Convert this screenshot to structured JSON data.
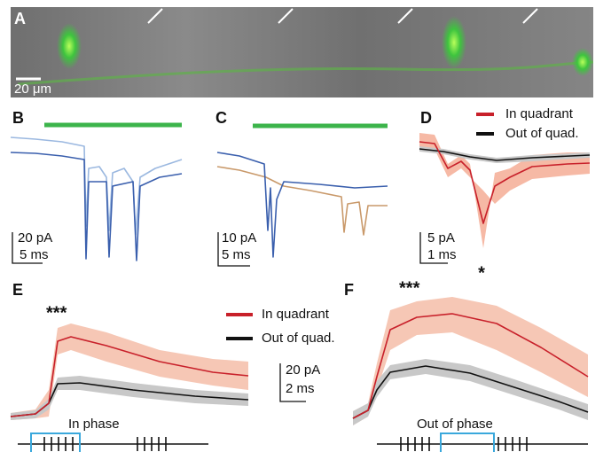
{
  "panels": {
    "A": {
      "label": "A",
      "scale": "20 μm"
    },
    "B": {
      "label": "B",
      "scale_y": "20 pA",
      "scale_x": "5 ms"
    },
    "C": {
      "label": "C",
      "scale_y": "10 pA",
      "scale_x": "5 ms"
    },
    "D": {
      "label": "D",
      "legend": [
        "In quadrant",
        "Out of quad."
      ],
      "scale_y": "5 pA",
      "scale_x": "1 ms",
      "significance": "*"
    },
    "E": {
      "label": "E",
      "significance": "***",
      "legend": [
        "In quadrant",
        "Out of quad."
      ],
      "annotation": "In phase"
    },
    "EF_scale": {
      "y": "20 pA",
      "x": "2 ms"
    },
    "F": {
      "label": "F",
      "significance": "***",
      "annotation": "Out of phase"
    }
  }
}
